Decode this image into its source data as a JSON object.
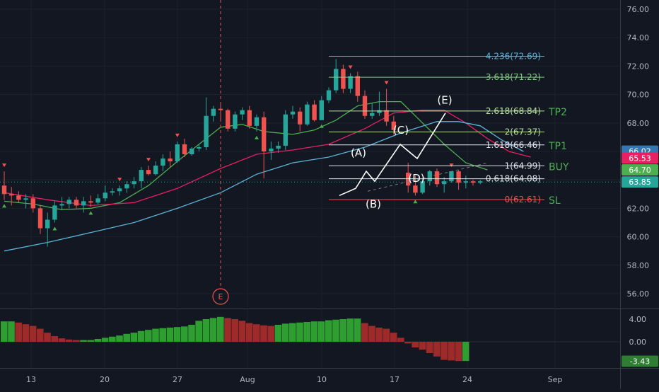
{
  "chart_data": {
    "type": "candlestick",
    "price_axis": {
      "min": 55,
      "max": 77,
      "ticks": [
        "76.00",
        "74.00",
        "72.00",
        "70.00",
        "68.00",
        "66.00",
        "64.00",
        "62.00",
        "60.00",
        "58.00",
        "56.00"
      ]
    },
    "time_axis": {
      "ticks": [
        "13",
        "20",
        "27",
        "Aug",
        "10",
        "17",
        "24",
        "Sep"
      ]
    },
    "candles": [
      [
        63.6,
        64.6,
        62.6,
        63.0
      ],
      [
        63.0,
        63.5,
        62.2,
        62.9
      ],
      [
        62.9,
        63.2,
        62.4,
        62.6
      ],
      [
        62.6,
        63.0,
        62.0,
        62.7
      ],
      [
        62.7,
        63.0,
        61.7,
        62.0
      ],
      [
        62.0,
        62.2,
        60.2,
        60.6
      ],
      [
        60.6,
        61.7,
        59.3,
        61.2
      ],
      [
        61.2,
        62.5,
        61.0,
        62.2
      ],
      [
        62.2,
        62.8,
        61.9,
        62.3
      ],
      [
        62.3,
        62.8,
        62.0,
        62.6
      ],
      [
        62.6,
        62.8,
        62.0,
        62.2
      ],
      [
        62.2,
        62.8,
        61.7,
        62.5
      ],
      [
        62.5,
        62.9,
        62.1,
        62.4
      ],
      [
        62.4,
        63.0,
        62.3,
        62.7
      ],
      [
        62.7,
        63.6,
        62.5,
        63.1
      ],
      [
        63.1,
        63.4,
        62.9,
        63.2
      ],
      [
        63.2,
        63.6,
        62.9,
        63.4
      ],
      [
        63.4,
        63.9,
        63.1,
        63.7
      ],
      [
        63.7,
        64.2,
        63.4,
        63.9
      ],
      [
        63.9,
        64.9,
        63.4,
        64.7
      ],
      [
        64.7,
        65.0,
        64.3,
        64.4
      ],
      [
        64.4,
        65.3,
        64.3,
        65.0
      ],
      [
        65.0,
        65.8,
        64.6,
        65.5
      ],
      [
        65.5,
        66.0,
        64.9,
        65.3
      ],
      [
        65.3,
        66.7,
        65.2,
        66.5
      ],
      [
        66.5,
        66.9,
        65.6,
        65.8
      ],
      [
        65.8,
        66.3,
        65.7,
        66.2
      ],
      [
        66.2,
        66.5,
        66.0,
        66.3
      ],
      [
        66.3,
        69.8,
        66.1,
        68.5
      ],
      [
        68.5,
        69.2,
        68.1,
        69.0
      ],
      [
        69.0,
        69.3,
        68.2,
        68.9
      ],
      [
        68.9,
        69.0,
        67.4,
        67.6
      ],
      [
        67.6,
        68.8,
        67.4,
        68.6
      ],
      [
        68.6,
        69.1,
        68.2,
        68.9
      ],
      [
        68.9,
        69.2,
        67.6,
        67.8
      ],
      [
        67.8,
        68.6,
        67.4,
        68.4
      ],
      [
        68.4,
        68.8,
        64.1,
        66.0
      ],
      [
        66.0,
        66.7,
        65.4,
        66.2
      ],
      [
        66.2,
        66.7,
        65.9,
        66.4
      ],
      [
        66.4,
        68.9,
        66.1,
        68.6
      ],
      [
        68.6,
        69.2,
        68.3,
        68.8
      ],
      [
        68.8,
        69.1,
        67.4,
        67.9
      ],
      [
        67.9,
        69.5,
        67.8,
        69.3
      ],
      [
        69.3,
        69.6,
        68.1,
        68.2
      ],
      [
        68.2,
        69.9,
        68.2,
        69.6
      ],
      [
        69.6,
        70.5,
        69.4,
        70.3
      ],
      [
        70.3,
        72.5,
        70.1,
        71.8
      ],
      [
        71.8,
        72.1,
        70.1,
        70.4
      ],
      [
        70.4,
        71.5,
        70.1,
        71.3
      ],
      [
        71.3,
        71.6,
        69.5,
        69.9
      ],
      [
        69.9,
        70.3,
        68.3,
        68.5
      ],
      [
        68.5,
        69.4,
        68.3,
        68.7
      ],
      [
        68.7,
        70.2,
        68.5,
        68.9
      ],
      [
        68.9,
        70.4,
        67.8,
        68.1
      ],
      [
        68.1,
        68.5,
        67.2,
        67.5
      ],
      [
        null,
        null,
        null,
        null
      ],
      [
        64.5,
        65.2,
        63.1,
        63.6
      ],
      [
        63.6,
        64.3,
        62.9,
        63.1
      ],
      [
        63.1,
        64.1,
        63.0,
        63.9
      ],
      [
        63.9,
        64.7,
        63.6,
        64.6
      ],
      [
        64.6,
        64.8,
        63.5,
        63.7
      ],
      [
        63.7,
        64.2,
        63.1,
        63.9
      ],
      [
        63.9,
        64.6,
        63.8,
        64.6
      ],
      [
        64.6,
        64.7,
        63.3,
        63.8
      ],
      [
        63.8,
        64.3,
        63.4,
        63.9
      ],
      [
        63.9,
        64.0,
        63.6,
        63.8
      ],
      [
        63.8,
        64.0,
        63.7,
        63.9
      ]
    ],
    "moving_averages": [
      {
        "color": "#4caf50",
        "points": [
          [
            0,
            62.5
          ],
          [
            4,
            62.3
          ],
          [
            8,
            61.9
          ],
          [
            12,
            62.0
          ],
          [
            16,
            62.4
          ],
          [
            20,
            63.6
          ],
          [
            24,
            65.3
          ],
          [
            28,
            66.9
          ],
          [
            30,
            67.7
          ],
          [
            33,
            67.9
          ],
          [
            36,
            67.4
          ],
          [
            40,
            67.2
          ],
          [
            43,
            67.5
          ],
          [
            46,
            68.2
          ],
          [
            49,
            69.2
          ],
          [
            52,
            69.5
          ],
          [
            55,
            69.5
          ],
          [
            58,
            68.0
          ],
          [
            61,
            66.5
          ],
          [
            64,
            65.2
          ],
          [
            67,
            64.7
          ]
        ]
      },
      {
        "color": "#e91e63",
        "points": [
          [
            0,
            63.1
          ],
          [
            6,
            62.6
          ],
          [
            12,
            62.2
          ],
          [
            18,
            62.4
          ],
          [
            24,
            63.4
          ],
          [
            30,
            64.8
          ],
          [
            35,
            65.8
          ],
          [
            40,
            66.1
          ],
          [
            45,
            66.5
          ],
          [
            50,
            67.6
          ],
          [
            54,
            68.7
          ],
          [
            58,
            68.9
          ],
          [
            61,
            68.9
          ],
          [
            64,
            68.0
          ],
          [
            67,
            66.9
          ],
          [
            70,
            66.0
          ],
          [
            73,
            65.6
          ]
        ]
      },
      {
        "color": "#5ab4d8",
        "points": [
          [
            0,
            59.0
          ],
          [
            6,
            59.6
          ],
          [
            12,
            60.3
          ],
          [
            18,
            61.0
          ],
          [
            24,
            62.0
          ],
          [
            30,
            63.1
          ],
          [
            35,
            64.4
          ],
          [
            40,
            65.2
          ],
          [
            45,
            65.6
          ],
          [
            50,
            66.3
          ],
          [
            55,
            67.3
          ],
          [
            60,
            68.1
          ],
          [
            63,
            68.1
          ],
          [
            66,
            67.8
          ],
          [
            69,
            66.8
          ],
          [
            72,
            66.0
          ]
        ]
      }
    ],
    "markers_down": [
      0,
      16,
      20,
      24,
      48,
      53,
      62
    ],
    "markers_up": [
      0,
      7,
      12,
      35,
      44,
      57
    ],
    "fib_levels": [
      {
        "label": "4.236(72.69)",
        "value": 72.69,
        "color": "#5ab4d8"
      },
      {
        "label": "3.618(71.22)",
        "value": 71.22,
        "color": "#81c784"
      },
      {
        "label": "2.618(68.84)",
        "value": 68.84,
        "color": "#b7e0a0"
      },
      {
        "label": "2(67.37)",
        "value": 67.37,
        "color": "#b7e0a0"
      },
      {
        "label": "1.618(66.46)",
        "value": 66.46,
        "color": "#e0e3eb"
      },
      {
        "label": "1(64.99)",
        "value": 64.99,
        "color": "#e0e3eb"
      },
      {
        "label": "0.618(64.08)",
        "value": 64.08,
        "color": "#e0e3eb"
      },
      {
        "label": "0(62.61)",
        "value": 62.61,
        "color": "#ef5350"
      }
    ],
    "targets": [
      {
        "label": "TP2",
        "value": 68.84
      },
      {
        "label": "TP1",
        "value": 66.46
      },
      {
        "label": "BUY",
        "value": 64.99
      },
      {
        "label": "SL",
        "value": 62.61
      }
    ],
    "wave_labels": [
      {
        "label": "(A)",
        "value": 65.0
      },
      {
        "label": "(B)",
        "value": 63.3
      },
      {
        "label": "(C)",
        "value": 66.6
      },
      {
        "label": "(D)",
        "value": 64.8
      },
      {
        "label": "(E)",
        "value": 68.8
      }
    ],
    "wave_path": [
      [
        62.9,
        63.4
      ],
      [
        63.4,
        64.6
      ],
      [
        64.6,
        63.9
      ],
      [
        63.9,
        66.5
      ],
      [
        66.5,
        65.5
      ],
      [
        65.5,
        68.7
      ]
    ],
    "event_marker": {
      "label": "E"
    },
    "price_labels": [
      {
        "text": "66.02",
        "value": 66.02,
        "color": "#3179b0"
      },
      {
        "text": "65.53",
        "value": 65.53,
        "color": "#e91e63"
      },
      {
        "text": "64.70",
        "value": 64.7,
        "color": "#4caf50"
      },
      {
        "text": "63.85",
        "value": 63.85,
        "color": "#26a69a"
      }
    ],
    "oscillator": {
      "axis_ticks": [
        "4.00",
        "0.00"
      ],
      "last_label": "-3.43",
      "values": [
        3.6,
        3.6,
        3.4,
        3.1,
        2.8,
        2.3,
        1.6,
        1.0,
        0.6,
        0.4,
        0.3,
        0.3,
        0.3,
        0.5,
        0.7,
        0.9,
        1.1,
        1.4,
        1.6,
        1.9,
        2.1,
        2.3,
        2.4,
        2.5,
        2.6,
        2.7,
        3.0,
        3.7,
        4.0,
        4.2,
        4.4,
        4.2,
        4.0,
        3.7,
        3.3,
        3.1,
        2.9,
        2.8,
        3.0,
        3.2,
        3.3,
        3.4,
        3.5,
        3.6,
        3.6,
        3.8,
        3.9,
        4.0,
        4.1,
        4.1,
        3.3,
        2.8,
        2.5,
        2.3,
        1.6,
        0.7,
        -0.3,
        -1.0,
        -1.4,
        -2.0,
        -2.6,
        -3.2,
        -3.3,
        -3.4,
        -3.4
      ]
    }
  }
}
